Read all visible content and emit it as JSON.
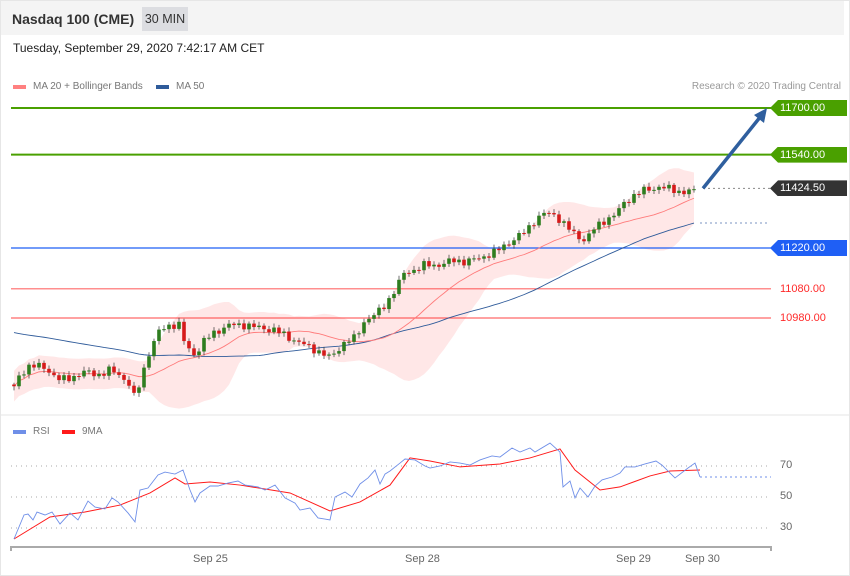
{
  "header": {
    "title": "Nasdaq 100 (CME)",
    "timeframe": "30 MIN",
    "datetime": "Tuesday, September 29, 2020 7:42:17 AM CET"
  },
  "legend": {
    "ma20": "MA 20 + Bollinger Bands",
    "ma50": "MA 50",
    "copyright": "Research © 2020 Trading Central"
  },
  "colors": {
    "ma20": "#ff7b7b",
    "ma50": "#2f5b9a",
    "band": "#ffe3e3",
    "up": "#2e7d1f",
    "down": "#d61a1a",
    "resistance": "#4aa000",
    "pivot": "#1f5ff5",
    "support": "#ff2a2a",
    "last": "#333333",
    "arrow": "#2f5f9e",
    "rsi": "#6f8fe8",
    "rsi_ma": "#ff1a1a"
  },
  "levels": [
    {
      "name": "resistance-2",
      "value": 11700,
      "label": "11700.00",
      "style": "tag",
      "color": "#4aa000"
    },
    {
      "name": "resistance-1",
      "value": 11540,
      "label": "11540.00",
      "style": "tag",
      "color": "#4aa000"
    },
    {
      "name": "last-price",
      "value": 11424.5,
      "label": "11424.50",
      "style": "tag",
      "color": "#333333"
    },
    {
      "name": "pivot",
      "value": 11220,
      "label": "11220.00",
      "style": "tag",
      "color": "#1f5ff5"
    },
    {
      "name": "support-1",
      "value": 11080,
      "label": "11080.00",
      "style": "text",
      "color": "#ff2a2a"
    },
    {
      "name": "support-2",
      "value": 10980,
      "label": "10980.00",
      "style": "text",
      "color": "#ff2a2a"
    }
  ],
  "chart_data": [
    {
      "type": "candlestick",
      "title": "Nasdaq 100 (CME)",
      "ylim": [
        10680,
        11720
      ],
      "close_keyframes": [
        [
          0,
          10740
        ],
        [
          1.2,
          10785
        ],
        [
          3.2,
          10819
        ],
        [
          6.2,
          10809
        ],
        [
          9.2,
          10767
        ],
        [
          11.2,
          10774
        ],
        [
          14.2,
          10795
        ],
        [
          17.2,
          10785
        ],
        [
          19.2,
          10802
        ],
        [
          21.2,
          10785
        ],
        [
          23.2,
          10750
        ],
        [
          24.2,
          10699
        ],
        [
          25.6,
          10785
        ],
        [
          27.2,
          10870
        ],
        [
          29.2,
          10939
        ],
        [
          31.2,
          10956
        ],
        [
          33.2,
          10956
        ],
        [
          34.2,
          10887
        ],
        [
          36.2,
          10853
        ],
        [
          38.2,
          10905
        ],
        [
          40.2,
          10932
        ],
        [
          43.2,
          10956
        ],
        [
          46.2,
          10956
        ],
        [
          49.2,
          10946
        ],
        [
          52.2,
          10939
        ],
        [
          55.2,
          10911
        ],
        [
          58.2,
          10887
        ],
        [
          61.2,
          10863
        ],
        [
          63.2,
          10843
        ],
        [
          66.2,
          10898
        ],
        [
          68.2,
          10911
        ],
        [
          70.2,
          10973
        ],
        [
          72.2,
          10990
        ],
        [
          74.2,
          11025
        ],
        [
          76.2,
          11076
        ],
        [
          78.2,
          11138
        ],
        [
          80.2,
          11145
        ],
        [
          82.2,
          11162
        ],
        [
          85.2,
          11162
        ],
        [
          88.2,
          11179
        ],
        [
          90.2,
          11172
        ],
        [
          93.2,
          11186
        ],
        [
          96.2,
          11206
        ],
        [
          99.2,
          11241
        ],
        [
          102.2,
          11275
        ],
        [
          104.2,
          11316
        ],
        [
          106.2,
          11340
        ],
        [
          108.2,
          11333
        ],
        [
          110.2,
          11299
        ],
        [
          112.2,
          11265
        ],
        [
          114.2,
          11247
        ],
        [
          116.2,
          11289
        ],
        [
          118.2,
          11316
        ],
        [
          120.2,
          11333
        ],
        [
          122.2,
          11378
        ],
        [
          124.2,
          11402
        ],
        [
          126.2,
          11419
        ],
        [
          129.2,
          11429
        ],
        [
          132.2,
          11419
        ],
        [
          134.2,
          11409
        ],
        [
          136.4,
          11424.5
        ]
      ],
      "target": {
        "from_index": 137.8,
        "from": 11424.5,
        "to_index": 150.6,
        "to": 11700
      }
    },
    {
      "type": "line",
      "legend": [
        "RSI",
        "9MA"
      ],
      "ylim": [
        20,
        90
      ],
      "yticks": [
        70,
        50,
        30
      ],
      "xticks": [
        {
          "label": "Sep 25",
          "index": 39.4
        },
        {
          "label": "Sep 28",
          "index": 81.8
        },
        {
          "label": "Sep 29",
          "index": 124
        },
        {
          "label": "Sep 30",
          "index": 137.8
        }
      ],
      "rsi": [
        [
          0,
          22.9
        ],
        [
          2,
          38.4
        ],
        [
          2.8,
          39
        ],
        [
          3.8,
          35.2
        ],
        [
          4.6,
          40.3
        ],
        [
          6.2,
          38.4
        ],
        [
          7.6,
          40.3
        ],
        [
          9.2,
          32.6
        ],
        [
          11.2,
          39.7
        ],
        [
          12.8,
          35.2
        ],
        [
          14.8,
          47.4
        ],
        [
          16.2,
          43.5
        ],
        [
          18.2,
          42.3
        ],
        [
          19.6,
          49.4
        ],
        [
          20.8,
          46.8
        ],
        [
          22.8,
          39.7
        ],
        [
          24.2,
          33.9
        ],
        [
          25.2,
          54.5
        ],
        [
          26.8,
          55.8
        ],
        [
          28.8,
          64.2
        ],
        [
          30.2,
          66.1
        ],
        [
          32.2,
          64.8
        ],
        [
          33.8,
          67.4
        ],
        [
          35.2,
          54.5
        ],
        [
          36.2,
          46.8
        ],
        [
          37.2,
          52.6
        ],
        [
          39.2,
          57.1
        ],
        [
          40.8,
          57.1
        ],
        [
          42.8,
          59
        ],
        [
          44.8,
          60.3
        ],
        [
          46.2,
          57.7
        ],
        [
          48.8,
          56.5
        ],
        [
          50.2,
          54.5
        ],
        [
          52.2,
          57.7
        ],
        [
          54.2,
          49.4
        ],
        [
          56.2,
          46.1
        ],
        [
          57.2,
          41.6
        ],
        [
          59.2,
          42.9
        ],
        [
          60.8,
          36.5
        ],
        [
          62.2,
          35.8
        ],
        [
          63.2,
          35.2
        ],
        [
          64.2,
          50
        ],
        [
          66.2,
          53.2
        ],
        [
          67.6,
          50
        ],
        [
          69.2,
          58.4
        ],
        [
          70.8,
          62.3
        ],
        [
          72.2,
          67.4
        ],
        [
          73.2,
          58.4
        ],
        [
          74.2,
          64.8
        ],
        [
          75.2,
          66.8
        ],
        [
          77.2,
          71.9
        ],
        [
          78.2,
          74.5
        ],
        [
          80.2,
          73.9
        ],
        [
          82.2,
          70
        ],
        [
          83.2,
          68.7
        ],
        [
          85.2,
          70
        ],
        [
          87.2,
          72.6
        ],
        [
          89.2,
          71.9
        ],
        [
          91.2,
          70.6
        ],
        [
          93.2,
          73.9
        ],
        [
          95.6,
          76.5
        ],
        [
          97.2,
          75.8
        ],
        [
          99.6,
          81.6
        ],
        [
          101.2,
          79
        ],
        [
          103.2,
          81.6
        ],
        [
          104.2,
          79
        ],
        [
          107.2,
          84.8
        ],
        [
          109.2,
          79
        ],
        [
          109.8,
          56.5
        ],
        [
          111.2,
          60.3
        ],
        [
          112.2,
          49.4
        ],
        [
          113.2,
          55.8
        ],
        [
          114.8,
          50
        ],
        [
          116.2,
          57.1
        ],
        [
          117.6,
          61
        ],
        [
          119.6,
          62.9
        ],
        [
          121.2,
          65.5
        ],
        [
          122.2,
          69.4
        ],
        [
          124.2,
          69.4
        ],
        [
          126.2,
          71.3
        ],
        [
          128.4,
          73.2
        ],
        [
          129.6,
          70.6
        ],
        [
          132.2,
          62.3
        ],
        [
          134.8,
          68.7
        ],
        [
          136.2,
          71.9
        ],
        [
          137.2,
          62.9
        ]
      ],
      "rsi_last": 62.9,
      "ma9": [
        [
          0,
          22.9
        ],
        [
          7.2,
          37.1
        ],
        [
          14.2,
          40.3
        ],
        [
          21.2,
          44.8
        ],
        [
          27.2,
          52.6
        ],
        [
          32.2,
          62.3
        ],
        [
          34.2,
          58.4
        ],
        [
          39.2,
          59.7
        ],
        [
          45.2,
          57.7
        ],
        [
          55.2,
          52.6
        ],
        [
          63.2,
          41
        ],
        [
          69.2,
          46.8
        ],
        [
          75.2,
          57.7
        ],
        [
          79.2,
          75.2
        ],
        [
          83.2,
          73.2
        ],
        [
          89.2,
          69.4
        ],
        [
          97.2,
          71.3
        ],
        [
          103.2,
          75.2
        ],
        [
          109.2,
          81
        ],
        [
          112.2,
          67.4
        ],
        [
          117.2,
          54.5
        ],
        [
          121.2,
          56.5
        ],
        [
          127.2,
          63.6
        ],
        [
          131.2,
          66.8
        ],
        [
          137.2,
          67.4
        ]
      ]
    }
  ]
}
